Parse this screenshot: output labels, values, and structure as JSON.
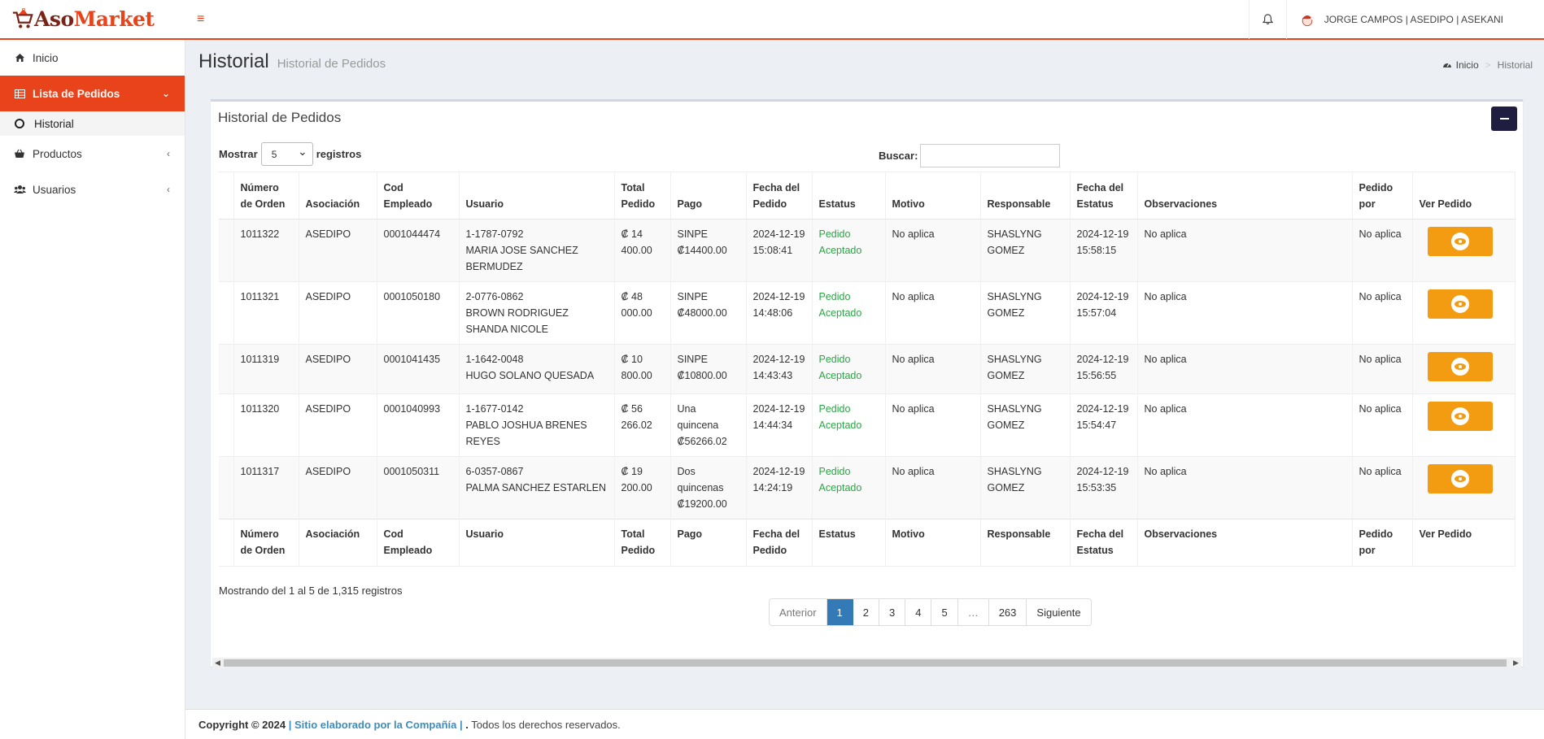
{
  "header": {
    "logo_aso": "Aso",
    "logo_market": "Market",
    "user_label": "JORGE CAMPOS | ASEDIPO | ASEKANI"
  },
  "sidebar": {
    "items": [
      {
        "label": "Inicio",
        "icon": "home-icon"
      },
      {
        "label": "Lista de Pedidos",
        "icon": "table-icon",
        "active": true
      },
      {
        "label": "Historial",
        "icon": "circle-icon",
        "sub": true
      },
      {
        "label": "Productos",
        "icon": "basket-icon"
      },
      {
        "label": "Usuarios",
        "icon": "users-icon"
      }
    ]
  },
  "page": {
    "title": "Historial",
    "subtitle": "Historial de Pedidos",
    "breadcrumb_home": "Inicio",
    "breadcrumb_current": "Historial"
  },
  "box": {
    "title": "Historial de Pedidos",
    "show_label": "Mostrar",
    "show_value": "5",
    "records_label": "registros",
    "search_label": "Buscar:",
    "search_value": ""
  },
  "table": {
    "columns": [
      "Número de Orden",
      "Asociación",
      "Cod Empleado",
      "Usuario",
      "Total Pedido",
      "Pago",
      "Fecha del Pedido",
      "Estatus",
      "Motivo",
      "Responsable",
      "Fecha del Estatus",
      "Observaciones",
      "Pedido por",
      "Ver Pedido"
    ],
    "rows": [
      {
        "orden": "1011322",
        "asociacion": "ASEDIPO",
        "cod": "0001044474",
        "usuario_id": "1-1787-0792",
        "usuario_nombre": "MARIA JOSE SANCHEZ BERMUDEZ",
        "total": "₡ 14 400.00",
        "pago": "SINPE ₡14400.00",
        "fecha": "2024-12-19 15:08:41",
        "estatus": "Pedido Aceptado",
        "motivo": "No aplica",
        "responsable": "SHASLYNG GOMEZ",
        "fecha_estatus": "2024-12-19 15:58:15",
        "observaciones": "No aplica",
        "pedido_por": "No aplica"
      },
      {
        "orden": "1011321",
        "asociacion": "ASEDIPO",
        "cod": "0001050180",
        "usuario_id": "2-0776-0862",
        "usuario_nombre": "BROWN RODRIGUEZ SHANDA NICOLE",
        "total": "₡ 48 000.00",
        "pago": "SINPE ₡48000.00",
        "fecha": "2024-12-19 14:48:06",
        "estatus": "Pedido Aceptado",
        "motivo": "No aplica",
        "responsable": "SHASLYNG GOMEZ",
        "fecha_estatus": "2024-12-19 15:57:04",
        "observaciones": "No aplica",
        "pedido_por": "No aplica"
      },
      {
        "orden": "1011319",
        "asociacion": "ASEDIPO",
        "cod": "0001041435",
        "usuario_id": "1-1642-0048",
        "usuario_nombre": "HUGO SOLANO QUESADA",
        "total": "₡ 10 800.00",
        "pago": "SINPE ₡10800.00",
        "fecha": "2024-12-19 14:43:43",
        "estatus": "Pedido Aceptado",
        "motivo": "No aplica",
        "responsable": "SHASLYNG GOMEZ",
        "fecha_estatus": "2024-12-19 15:56:55",
        "observaciones": "No aplica",
        "pedido_por": "No aplica"
      },
      {
        "orden": "1011320",
        "asociacion": "ASEDIPO",
        "cod": "0001040993",
        "usuario_id": "1-1677-0142",
        "usuario_nombre": "PABLO JOSHUA BRENES REYES",
        "total": "₡ 56 266.02",
        "pago": "Una quincena ₡56266.02",
        "fecha": "2024-12-19 14:44:34",
        "estatus": "Pedido Aceptado",
        "motivo": "No aplica",
        "responsable": "SHASLYNG GOMEZ",
        "fecha_estatus": "2024-12-19 15:54:47",
        "observaciones": "No aplica",
        "pedido_por": "No aplica"
      },
      {
        "orden": "1011317",
        "asociacion": "ASEDIPO",
        "cod": "0001050311",
        "usuario_id": "6-0357-0867",
        "usuario_nombre": "PALMA SANCHEZ ESTARLEN",
        "total": "₡ 19 200.00",
        "pago": "Dos quincenas ₡19200.00",
        "fecha": "2024-12-19 14:24:19",
        "estatus": "Pedido Aceptado",
        "motivo": "No aplica",
        "responsable": "SHASLYNG GOMEZ",
        "fecha_estatus": "2024-12-19 15:53:35",
        "observaciones": "No aplica",
        "pedido_por": "No aplica"
      }
    ]
  },
  "info": "Mostrando del 1 al 5 de 1,315 registros",
  "pagination": {
    "prev": "Anterior",
    "pages": [
      "1",
      "2",
      "3",
      "4",
      "5",
      "…",
      "263"
    ],
    "active": "1",
    "next": "Siguiente"
  },
  "footer": {
    "copyright": "Copyright © 2024",
    "pipe1": " | ",
    "link": "Sitio elaborado por la Compañía",
    "pipe2": " | ",
    "dot": ".",
    "rights": " Todos los derechos reservados."
  },
  "colors": {
    "accent": "#e8431a",
    "view_button": "#f39c12",
    "status_accepted": "#28a745",
    "pager_active": "#337ab7"
  }
}
